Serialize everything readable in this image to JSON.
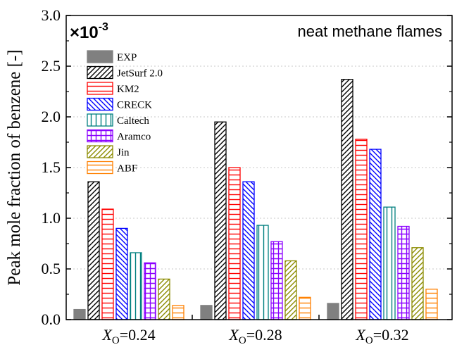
{
  "chart_data": {
    "type": "bar",
    "categories": [
      {
        "prefix": "X",
        "sub": "O",
        "value_text": "=0.24"
      },
      {
        "prefix": "X",
        "sub": "O",
        "value_text": "=0.28"
      },
      {
        "prefix": "X",
        "sub": "O",
        "value_text": "=0.32"
      }
    ],
    "series": [
      {
        "name": "EXP",
        "color": "#808080",
        "pattern": "solid",
        "values": [
          0.1,
          0.14,
          0.16
        ]
      },
      {
        "name": "JetSurf 2.0",
        "color": "#000000",
        "pattern": "diag-up",
        "values": [
          1.36,
          1.95,
          2.37
        ]
      },
      {
        "name": "KM2",
        "color": "#ff0000",
        "pattern": "horiz",
        "values": [
          1.09,
          1.5,
          1.78
        ]
      },
      {
        "name": "CRECK",
        "color": "#0000ff",
        "pattern": "diag-down",
        "values": [
          0.9,
          1.36,
          1.68
        ]
      },
      {
        "name": "Caltech",
        "color": "#007f7f",
        "pattern": "vert",
        "values": [
          0.66,
          0.93,
          1.11
        ]
      },
      {
        "name": "Aramco",
        "color": "#8b00ff",
        "pattern": "grid",
        "values": [
          0.56,
          0.77,
          0.92
        ]
      },
      {
        "name": "Jin",
        "color": "#8b8b00",
        "pattern": "diag-up",
        "values": [
          0.4,
          0.58,
          0.71
        ]
      },
      {
        "name": "ABF",
        "color": "#ff8000",
        "pattern": "horiz",
        "values": [
          0.14,
          0.22,
          0.3
        ]
      }
    ],
    "ylabel": "Peak mole fraction of benzene [-]",
    "yticks": [
      "0.0",
      "0.5",
      "1.0",
      "1.5",
      "2.0",
      "2.5",
      "3.0"
    ],
    "ylim": [
      0,
      3.0
    ],
    "multiplier": {
      "base": "×10",
      "exponent": "-3"
    },
    "annotation": "neat methane flames",
    "grid": "horizontal dotted",
    "legend_position": "top-left"
  }
}
